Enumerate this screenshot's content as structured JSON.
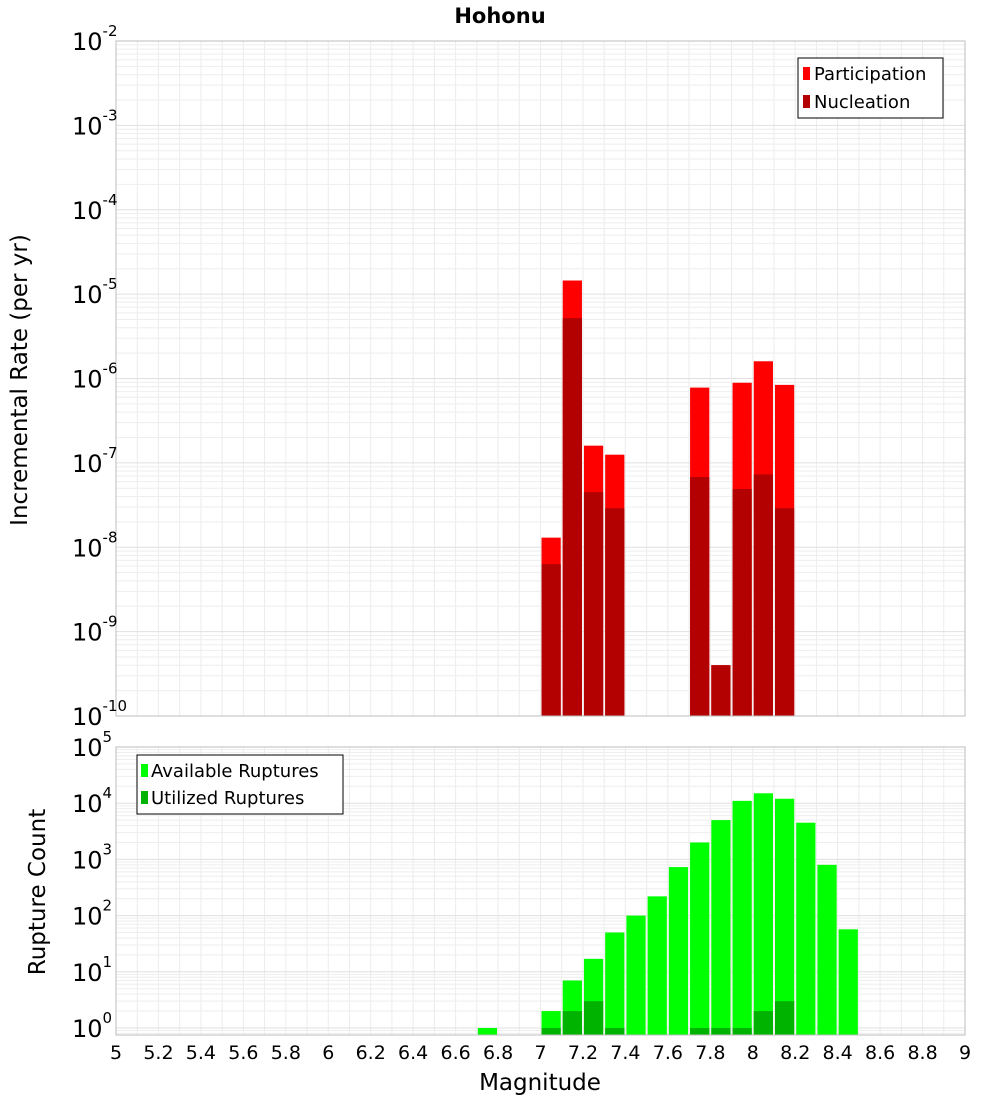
{
  "chart_data": [
    {
      "type": "bar",
      "title": "Hohonu",
      "ylabel": "Incremental Rate (per yr)",
      "xlim": [
        5,
        9
      ],
      "ylim": [
        1e-10,
        0.01
      ],
      "y_scale": "log",
      "grid": true,
      "legend_placement": "top-right",
      "bin_width": 0.1,
      "y_ticks": [
        {
          "base": "10",
          "exp": "-2"
        },
        {
          "base": "10",
          "exp": "-3"
        },
        {
          "base": "10",
          "exp": "-4"
        },
        {
          "base": "10",
          "exp": "-5"
        },
        {
          "base": "10",
          "exp": "-6"
        },
        {
          "base": "10",
          "exp": "-7"
        },
        {
          "base": "10",
          "exp": "-8"
        },
        {
          "base": "10",
          "exp": "-9"
        },
        {
          "base": "10",
          "exp": "-10"
        }
      ],
      "series": [
        {
          "name": "Participation",
          "color": "#ff0000",
          "x": [
            7.05,
            7.15,
            7.25,
            7.35,
            7.75,
            7.85,
            7.95,
            8.05,
            8.15
          ],
          "values": [
            1.3e-08,
            1.45e-05,
            1.6e-07,
            1.25e-07,
            7.8e-07,
            4e-10,
            8.9e-07,
            1.6e-06,
            8.4e-07
          ]
        },
        {
          "name": "Nucleation",
          "color": "#b30000",
          "x": [
            7.05,
            7.15,
            7.25,
            7.35,
            7.75,
            7.85,
            7.95,
            8.05,
            8.15
          ],
          "values": [
            6.3e-09,
            5.2e-06,
            4.5e-08,
            2.9e-08,
            6.8e-08,
            4e-10,
            4.9e-08,
            7.3e-08,
            2.9e-08
          ]
        }
      ]
    },
    {
      "type": "bar",
      "xlabel": "Magnitude",
      "ylabel": "Rupture Count",
      "xlim": [
        5,
        9
      ],
      "ylim": [
        0.75,
        100000.0
      ],
      "y_scale": "log",
      "grid": true,
      "legend_placement": "top-left",
      "bin_width": 0.1,
      "x_ticks": [
        "5",
        "5.2",
        "5.4",
        "5.6",
        "5.8",
        "6",
        "6.2",
        "6.4",
        "6.6",
        "6.8",
        "7",
        "7.2",
        "7.4",
        "7.6",
        "7.8",
        "8",
        "8.2",
        "8.4",
        "8.6",
        "8.8",
        "9"
      ],
      "y_ticks": [
        {
          "base": "10",
          "exp": "5"
        },
        {
          "base": "10",
          "exp": "4"
        },
        {
          "base": "10",
          "exp": "3"
        },
        {
          "base": "10",
          "exp": "2"
        },
        {
          "base": "10",
          "exp": "1"
        },
        {
          "base": "10",
          "exp": "0"
        }
      ],
      "series": [
        {
          "name": "Available Ruptures",
          "color": "#00ff00",
          "x": [
            6.75,
            7.05,
            7.15,
            7.25,
            7.35,
            7.45,
            7.55,
            7.65,
            7.75,
            7.85,
            7.95,
            8.05,
            8.15,
            8.25,
            8.35,
            8.45
          ],
          "values": [
            1,
            2,
            7,
            17,
            50,
            100,
            220,
            730,
            2000,
            5000,
            11000,
            15000,
            12000,
            4500,
            800,
            57
          ]
        },
        {
          "name": "Utilized Ruptures",
          "color": "#00b300",
          "x": [
            7.05,
            7.15,
            7.25,
            7.35,
            7.75,
            7.85,
            7.95,
            8.05,
            8.15
          ],
          "values": [
            1,
            2,
            3,
            1,
            1,
            1,
            1,
            2,
            3
          ]
        }
      ]
    }
  ]
}
